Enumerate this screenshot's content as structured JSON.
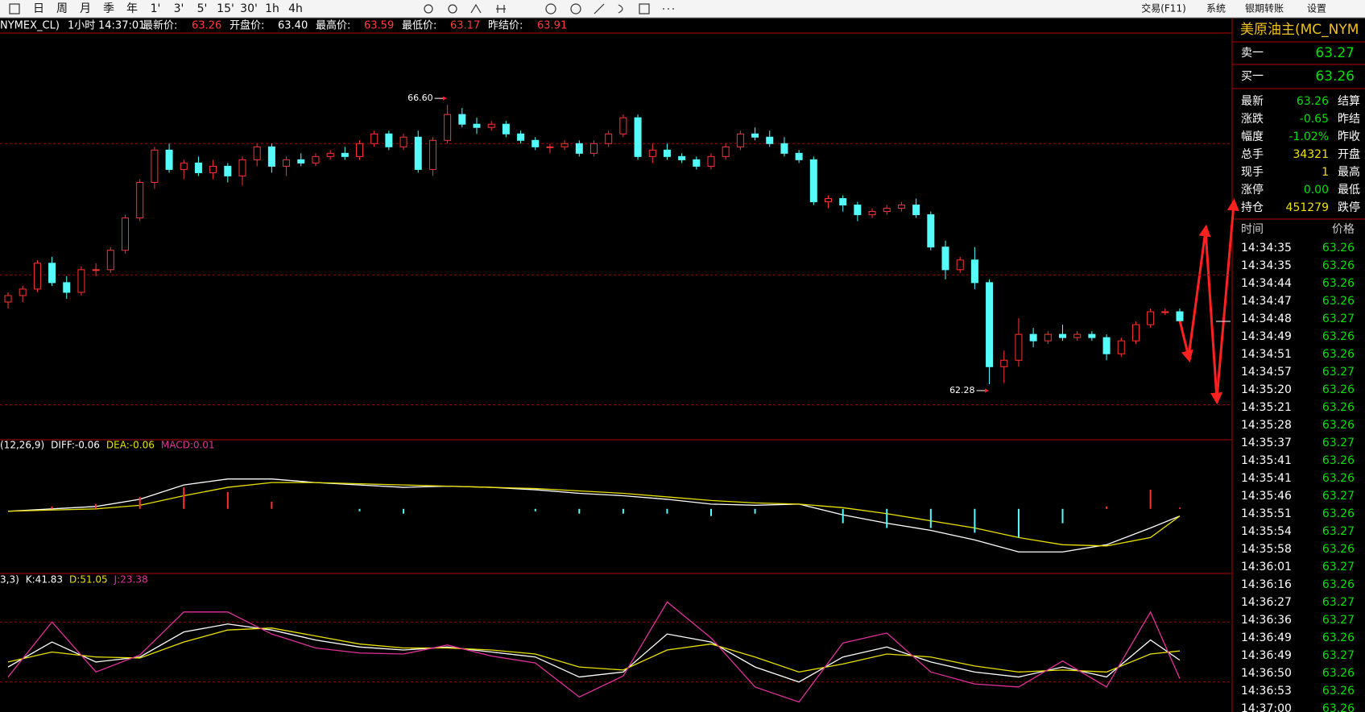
{
  "toolbar": {
    "periods": [
      "日",
      "周",
      "月",
      "季",
      "年",
      "1'",
      "3'",
      "5'",
      "15'",
      "30'",
      "1h",
      "4h"
    ],
    "menu": [
      "交易(F11)",
      "系统",
      "银期转账",
      "设置"
    ]
  },
  "info_bar": {
    "symbol": "NYMEX_CL)",
    "period": "1小时",
    "time": "14:37:01",
    "fields": [
      {
        "label": "最新价:",
        "value": "63.26",
        "color": "#ff3b3b"
      },
      {
        "label": "开盘价:",
        "value": "63.40",
        "color": "#ffffff"
      },
      {
        "label": "最高价:",
        "value": "63.59",
        "color": "#ff3b3b"
      },
      {
        "label": "最低价:",
        "value": "63.17",
        "color": "#ff3b3b"
      },
      {
        "label": "昨结价:",
        "value": "63.91",
        "color": "#ff3b3b"
      }
    ]
  },
  "chart_data": [
    {
      "type": "candlestick",
      "up_color": "#ff3232",
      "down_color": "#54fcfc",
      "ylim": [
        61.42,
        67.71
      ],
      "ygrid": [
        66.0,
        63.97,
        61.96
      ],
      "annotations": [
        {
          "value": 66.6,
          "label": "66.60"
        },
        {
          "value": 62.28,
          "label": "62.28"
        }
      ],
      "ohlc": [
        [
          63.55,
          63.7,
          63.45,
          63.65
        ],
        [
          63.65,
          63.8,
          63.55,
          63.75
        ],
        [
          63.75,
          64.2,
          63.7,
          64.15
        ],
        [
          64.15,
          64.25,
          63.8,
          63.85
        ],
        [
          63.85,
          63.95,
          63.6,
          63.7
        ],
        [
          63.7,
          64.1,
          63.65,
          64.05
        ],
        [
          64.05,
          64.15,
          63.95,
          64.05
        ],
        [
          64.05,
          64.4,
          64.0,
          64.35
        ],
        [
          64.35,
          64.9,
          64.3,
          64.85
        ],
        [
          64.85,
          65.45,
          64.8,
          65.4
        ],
        [
          65.4,
          65.95,
          65.3,
          65.9
        ],
        [
          65.9,
          66.0,
          65.55,
          65.6
        ],
        [
          65.6,
          65.75,
          65.45,
          65.7
        ],
        [
          65.7,
          65.8,
          65.5,
          65.55
        ],
        [
          65.55,
          65.75,
          65.45,
          65.65
        ],
        [
          65.65,
          65.7,
          65.4,
          65.5
        ],
        [
          65.5,
          65.8,
          65.35,
          65.75
        ],
        [
          65.75,
          66.0,
          65.65,
          65.95
        ],
        [
          65.95,
          66.0,
          65.55,
          65.65
        ],
        [
          65.65,
          65.8,
          65.5,
          65.75
        ],
        [
          65.75,
          65.85,
          65.65,
          65.7
        ],
        [
          65.7,
          65.85,
          65.65,
          65.8
        ],
        [
          65.8,
          65.9,
          65.75,
          65.85
        ],
        [
          65.85,
          65.95,
          65.75,
          65.8
        ],
        [
          65.8,
          66.05,
          65.75,
          66.0
        ],
        [
          66.0,
          66.2,
          65.95,
          66.15
        ],
        [
          66.15,
          66.2,
          65.9,
          65.95
        ],
        [
          65.95,
          66.15,
          65.9,
          66.1
        ],
        [
          66.1,
          66.2,
          65.55,
          65.6
        ],
        [
          65.6,
          66.1,
          65.5,
          66.05
        ],
        [
          66.05,
          66.6,
          66.0,
          66.45
        ],
        [
          66.45,
          66.55,
          66.25,
          66.3
        ],
        [
          66.3,
          66.4,
          66.15,
          66.25
        ],
        [
          66.25,
          66.35,
          66.2,
          66.3
        ],
        [
          66.3,
          66.35,
          66.1,
          66.15
        ],
        [
          66.15,
          66.2,
          66.0,
          66.05
        ],
        [
          66.05,
          66.1,
          65.9,
          65.95
        ],
        [
          65.95,
          66.0,
          65.85,
          65.95
        ],
        [
          65.95,
          66.05,
          65.9,
          66.0
        ],
        [
          66.0,
          66.05,
          65.8,
          65.85
        ],
        [
          65.85,
          66.05,
          65.8,
          66.0
        ],
        [
          66.0,
          66.2,
          65.95,
          66.15
        ],
        [
          66.15,
          66.45,
          66.1,
          66.4
        ],
        [
          66.4,
          66.45,
          65.75,
          65.8
        ],
        [
          65.8,
          66.0,
          65.7,
          65.9
        ],
        [
          65.9,
          66.0,
          65.75,
          65.8
        ],
        [
          65.8,
          65.85,
          65.7,
          65.75
        ],
        [
          65.75,
          65.8,
          65.6,
          65.65
        ],
        [
          65.65,
          65.85,
          65.6,
          65.8
        ],
        [
          65.8,
          66.0,
          65.75,
          65.95
        ],
        [
          65.95,
          66.2,
          65.9,
          66.15
        ],
        [
          66.15,
          66.25,
          66.05,
          66.1
        ],
        [
          66.1,
          66.2,
          65.95,
          66.0
        ],
        [
          66.0,
          66.1,
          65.8,
          65.85
        ],
        [
          65.85,
          65.9,
          65.7,
          65.75
        ],
        [
          65.75,
          65.8,
          65.05,
          65.1
        ],
        [
          65.1,
          65.2,
          65.0,
          65.15
        ],
        [
          65.15,
          65.2,
          64.95,
          65.05
        ],
        [
          65.05,
          65.1,
          64.8,
          64.9
        ],
        [
          64.9,
          65.0,
          64.85,
          64.95
        ],
        [
          64.95,
          65.05,
          64.9,
          65.0
        ],
        [
          65.0,
          65.1,
          64.95,
          65.05
        ],
        [
          65.05,
          65.15,
          64.85,
          64.9
        ],
        [
          64.9,
          64.95,
          64.35,
          64.4
        ],
        [
          64.4,
          64.5,
          63.9,
          64.05
        ],
        [
          64.05,
          64.25,
          64.0,
          64.2
        ],
        [
          64.2,
          64.4,
          63.75,
          63.85
        ],
        [
          63.85,
          63.9,
          62.28,
          62.55
        ],
        [
          62.55,
          62.8,
          62.3,
          62.65
        ],
        [
          62.65,
          63.3,
          62.55,
          63.05
        ],
        [
          63.05,
          63.15,
          62.85,
          62.95
        ],
        [
          62.95,
          63.1,
          62.9,
          63.05
        ],
        [
          63.05,
          63.2,
          62.95,
          63.0
        ],
        [
          63.0,
          63.1,
          62.95,
          63.05
        ],
        [
          63.05,
          63.1,
          62.95,
          63.0
        ],
        [
          63.0,
          63.05,
          62.65,
          62.75
        ],
        [
          62.75,
          63.0,
          62.7,
          62.95
        ],
        [
          62.95,
          63.25,
          62.9,
          63.2
        ],
        [
          63.2,
          63.45,
          63.15,
          63.4
        ],
        [
          63.4,
          63.45,
          63.35,
          63.4
        ],
        [
          63.4,
          63.45,
          63.26,
          63.26
        ]
      ]
    },
    {
      "type": "macd",
      "legend_prefix": "(12,26,9)",
      "xlim": [
        0,
        80
      ],
      "ylim": [
        -0.5,
        0.45
      ],
      "x": [
        0,
        3,
        6,
        9,
        12,
        15,
        18,
        21,
        24,
        27,
        30,
        33,
        36,
        39,
        42,
        45,
        48,
        51,
        54,
        57,
        60,
        63,
        66,
        69,
        72,
        75,
        78,
        80
      ],
      "series": [
        {
          "name": "DIFF:-0.06",
          "color": "#ffffff",
          "values": [
            -0.02,
            0.0,
            0.02,
            0.08,
            0.2,
            0.25,
            0.25,
            0.22,
            0.2,
            0.18,
            0.19,
            0.18,
            0.16,
            0.13,
            0.11,
            0.08,
            0.04,
            0.03,
            0.04,
            -0.05,
            -0.12,
            -0.18,
            -0.26,
            -0.36,
            -0.36,
            -0.3,
            -0.16,
            -0.06
          ]
        },
        {
          "name": "DEA:-0.06",
          "color": "#e8e000",
          "values": [
            -0.02,
            -0.01,
            0.0,
            0.03,
            0.11,
            0.18,
            0.22,
            0.22,
            0.21,
            0.2,
            0.19,
            0.18,
            0.17,
            0.15,
            0.13,
            0.1,
            0.07,
            0.05,
            0.04,
            0.01,
            -0.04,
            -0.1,
            -0.16,
            -0.24,
            -0.3,
            -0.31,
            -0.24,
            -0.06
          ]
        },
        {
          "name": "MACD:0.01",
          "color": "#e0309a",
          "bar": true,
          "up_color": "#ff3232",
          "down_color": "#54fcfc",
          "values": [
            0.0,
            0.02,
            0.04,
            0.1,
            0.18,
            0.14,
            0.06,
            0.0,
            -0.02,
            -0.04,
            0.0,
            0.0,
            -0.02,
            -0.04,
            -0.04,
            -0.04,
            -0.06,
            -0.04,
            0.0,
            -0.12,
            -0.16,
            -0.16,
            -0.2,
            -0.24,
            -0.12,
            0.02,
            0.16,
            0.01
          ]
        }
      ]
    },
    {
      "type": "kdj",
      "legend_prefix": "3,3)",
      "xlim": [
        0,
        80
      ],
      "ylim": [
        -10,
        110
      ],
      "ygrid": [
        80,
        20
      ],
      "x": [
        0,
        3,
        6,
        9,
        12,
        15,
        18,
        21,
        24,
        27,
        30,
        33,
        36,
        39,
        42,
        45,
        48,
        51,
        54,
        57,
        60,
        63,
        66,
        69,
        72,
        75,
        78,
        80
      ],
      "series": [
        {
          "name": "K:41.83",
          "color": "#ffffff",
          "values": [
            35,
            60,
            40,
            45,
            70,
            78,
            72,
            62,
            55,
            52,
            55,
            50,
            45,
            25,
            30,
            68,
            60,
            35,
            20,
            45,
            55,
            40,
            30,
            25,
            35,
            25,
            62,
            41.83
          ]
        },
        {
          "name": "D:51.05",
          "color": "#e8e000",
          "values": [
            40,
            50,
            45,
            44,
            60,
            72,
            74,
            66,
            58,
            54,
            54,
            52,
            48,
            35,
            32,
            52,
            58,
            45,
            30,
            38,
            48,
            45,
            36,
            30,
            32,
            30,
            48,
            51.05
          ]
        },
        {
          "name": "J:23.38",
          "color": "#e0309a",
          "values": [
            25,
            80,
            30,
            47,
            90,
            90,
            68,
            54,
            49,
            48,
            57,
            46,
            39,
            5,
            26,
            100,
            64,
            15,
            0,
            59,
            69,
            30,
            18,
            15,
            41,
            15,
            90,
            23.38
          ]
        }
      ]
    }
  ],
  "side_panel": {
    "title": "美原油主(MC_NYM",
    "ask": {
      "label": "卖一",
      "value": "63.27"
    },
    "bid": {
      "label": "买一",
      "value": "63.26"
    },
    "quotes": [
      {
        "label": "最新",
        "value": "63.26",
        "color": "#00e000",
        "right": "结算"
      },
      {
        "label": "涨跌",
        "value": "-0.65",
        "color": "#00e000",
        "right": "昨结"
      },
      {
        "label": "幅度",
        "value": "-1.02%",
        "color": "#00e000",
        "right": "昨收"
      },
      {
        "label": "总手",
        "value": "34321",
        "color": "#f0e000",
        "right": "开盘"
      },
      {
        "label": "现手",
        "value": "1",
        "color": "#f0e000",
        "right": "最高"
      },
      {
        "label": "涨停",
        "value": "0.00",
        "color": "#00e000",
        "right": "最低"
      },
      {
        "label": "持仓",
        "value": "451279",
        "color": "#f0e000",
        "right": "跌停"
      }
    ],
    "trades_header": [
      "时间",
      "价格"
    ],
    "trades": [
      [
        "14:34:35",
        "63.26"
      ],
      [
        "14:34:35",
        "63.26"
      ],
      [
        "14:34:44",
        "63.26"
      ],
      [
        "14:34:47",
        "63.26"
      ],
      [
        "14:34:48",
        "63.27"
      ],
      [
        "14:34:49",
        "63.26"
      ],
      [
        "14:34:51",
        "63.26"
      ],
      [
        "14:34:57",
        "63.27"
      ],
      [
        "14:35:20",
        "63.26"
      ],
      [
        "14:35:21",
        "63.26"
      ],
      [
        "14:35:28",
        "63.26"
      ],
      [
        "14:35:37",
        "63.27"
      ],
      [
        "14:35:41",
        "63.26"
      ],
      [
        "14:35:41",
        "63.26"
      ],
      [
        "14:35:46",
        "63.27"
      ],
      [
        "14:35:51",
        "63.26"
      ],
      [
        "14:35:54",
        "63.27"
      ],
      [
        "14:35:58",
        "63.26"
      ],
      [
        "14:36:01",
        "63.27"
      ],
      [
        "14:36:16",
        "63.26"
      ],
      [
        "14:36:27",
        "63.27"
      ],
      [
        "14:36:36",
        "63.27"
      ],
      [
        "14:36:49",
        "63.26"
      ],
      [
        "14:36:49",
        "63.27"
      ],
      [
        "14:36:50",
        "63.26"
      ],
      [
        "14:36:53",
        "63.26"
      ],
      [
        "14:37:00",
        "63.26"
      ]
    ]
  }
}
